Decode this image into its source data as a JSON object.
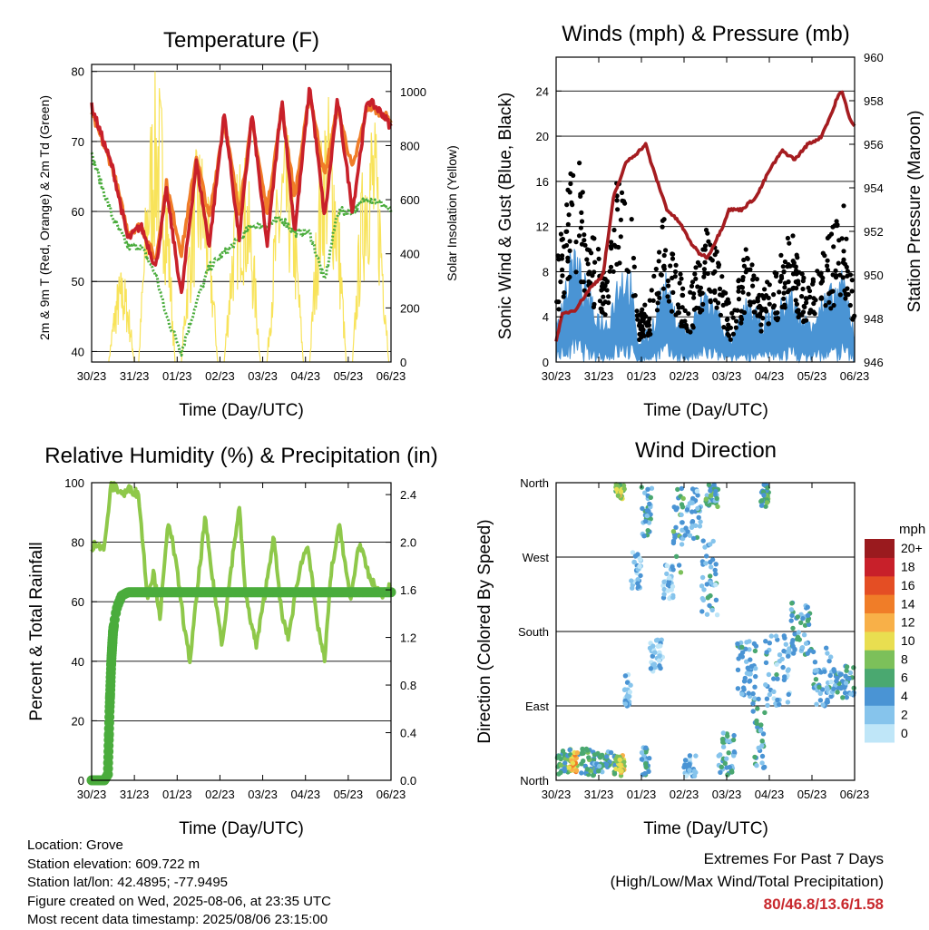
{
  "colors": {
    "temp_2m": "#c8202a",
    "temp_9m": "#f07d28",
    "dewpoint": "#4aac3c",
    "solar": "#f8e35a",
    "gust": "#000000",
    "wind": "#4a94d4",
    "pressure": "#a51c20",
    "rh": "#8ec84a",
    "precip": "#4aac3c"
  },
  "x_ticks": [
    "30/23",
    "31/23",
    "01/23",
    "02/23",
    "03/23",
    "04/23",
    "05/23",
    "06/23"
  ],
  "panels": {
    "temperature": {
      "title": "Temperature (F)",
      "xlabel": "Time (Day/UTC)",
      "ylabel_left": "2m & 9m T (Red, Orange) & 2m Td (Green)",
      "ylabel_right": "Solar Insolation (Yellow)",
      "yticks_left": [
        "40",
        "50",
        "60",
        "70",
        "80"
      ],
      "yticks_right": [
        "0",
        "200",
        "400",
        "600",
        "800",
        "1000"
      ]
    },
    "winds": {
      "title": "Winds (mph) & Pressure (mb)",
      "xlabel": "Time (Day/UTC)",
      "ylabel_left": "Sonic Wind & Gust (Blue, Black)",
      "ylabel_right": "Station Pressure (Maroon)",
      "yticks_left": [
        "0",
        "4",
        "8",
        "12",
        "16",
        "20",
        "24"
      ],
      "yticks_right": [
        "946",
        "948",
        "950",
        "952",
        "954",
        "956",
        "958",
        "960"
      ]
    },
    "humidity": {
      "title": "Relative Humidity (%) & Precipitation (in)",
      "xlabel": "Time (Day/UTC)",
      "ylabel_left": "Percent & Total Rainfall",
      "yticks_left": [
        "0",
        "20",
        "40",
        "60",
        "80",
        "100"
      ],
      "yticks_right": [
        "0.0",
        "0.4",
        "0.8",
        "1.2",
        "1.6",
        "2.0",
        "2.4"
      ]
    },
    "direction": {
      "title": "Wind Direction",
      "xlabel": "Time (Day/UTC)",
      "ylabel_left": "Direction (Colored By Speed)",
      "yticks_left": [
        "North",
        "East",
        "South",
        "West",
        "North"
      ],
      "colorbar_title": "mph",
      "colorbar_labels": [
        "0",
        "2",
        "4",
        "6",
        "8",
        "10",
        "12",
        "14",
        "16",
        "18",
        "20+"
      ],
      "colorbar_colors": [
        "#bfe6f8",
        "#86c4ec",
        "#4a94d4",
        "#4aa870",
        "#7cc05a",
        "#e9de50",
        "#f8b048",
        "#f07d28",
        "#e44e24",
        "#c8202a",
        "#9a1a1e"
      ]
    }
  },
  "info": {
    "location": "Location: Grove",
    "elevation": "Station elevation: 609.722 m",
    "latlon": "Station lat/lon: 42.4895; -77.9495",
    "created": "Figure created on Wed, 2025-08-06, at 23:35 UTC",
    "recent": "Most recent data timestamp: 2025/08/06 23:15:00"
  },
  "extremes": {
    "heading": "Extremes For Past 7 Days",
    "subheading": "(High/Low/Max Wind/Total Precipitation)",
    "values": "80/46.8/13.6/1.58"
  },
  "chart_data": [
    {
      "type": "line",
      "x_days": [
        0,
        0.5,
        0.85,
        1.15,
        1.5,
        1.75,
        2.1,
        2.45,
        2.75,
        3.1,
        3.45,
        3.75,
        4.1,
        4.45,
        4.75,
        5.1,
        5.45,
        5.75,
        6.1,
        6.45,
        6.8,
        7.0
      ],
      "ylim": [
        38.5,
        81
      ],
      "y2lim": [
        0,
        1100
      ],
      "series": [
        {
          "key": "temp_2m",
          "values": [
            75,
            66,
            56,
            58,
            52,
            63,
            48,
            67,
            55,
            74,
            56,
            74,
            55,
            76,
            57,
            78,
            59,
            76,
            60,
            76,
            74,
            72
          ]
        },
        {
          "key": "temp_9m",
          "values": [
            74,
            66,
            57,
            58,
            53,
            64,
            54,
            68,
            59,
            73,
            60,
            73,
            60,
            75,
            62,
            77,
            65,
            75,
            66,
            75,
            74,
            73
          ]
        },
        {
          "key": "dewpoint",
          "values": [
            68,
            59,
            55,
            55,
            51,
            45,
            40,
            47,
            52,
            54,
            56,
            58,
            58,
            59,
            57,
            57,
            50,
            60,
            60,
            62,
            61,
            60
          ]
        }
      ],
      "solar": {
        "days": [
          {
            "start": 0.4,
            "end": 1.0,
            "peak": 350
          },
          {
            "start": 1.1,
            "end": 1.95,
            "peak": 1090
          },
          {
            "start": 2.1,
            "end": 2.95,
            "peak": 830
          },
          {
            "start": 3.1,
            "end": 3.95,
            "peak": 800
          },
          {
            "start": 4.1,
            "end": 4.95,
            "peak": 880
          },
          {
            "start": 5.1,
            "end": 5.95,
            "peak": 1010
          },
          {
            "start": 6.1,
            "end": 6.95,
            "peak": 970
          }
        ]
      }
    },
    {
      "type": "scatter",
      "ylim": [
        0,
        27
      ],
      "y2lim": [
        946,
        960
      ],
      "pressure": {
        "x_days": [
          0,
          0.15,
          0.45,
          0.8,
          1.1,
          1.35,
          1.65,
          1.9,
          2.1,
          2.25,
          2.6,
          2.9,
          3.15,
          3.35,
          3.55,
          3.7,
          3.9,
          4.05,
          4.35,
          4.7,
          5.0,
          5.3,
          5.6,
          5.9,
          6.2,
          6.5,
          6.6,
          6.7,
          6.8,
          6.9,
          7.0
        ],
        "values": [
          947.0,
          948.2,
          948.4,
          949.4,
          950.0,
          953.6,
          955.2,
          955.6,
          956.0,
          955.0,
          953.0,
          952.4,
          951.5,
          951.0,
          950.8,
          951.4,
          952.2,
          953.0,
          953.0,
          953.6,
          954.8,
          955.7,
          955.3,
          956.0,
          956.3,
          957.6,
          958.2,
          958.4,
          957.8,
          957.1,
          956.8
        ]
      },
      "gust_envelope": {
        "x_days": [
          0,
          0.25,
          0.4,
          0.55,
          0.9,
          1.2,
          1.5,
          1.75,
          1.9,
          2.2,
          2.55,
          2.75,
          3.1,
          3.5,
          3.8,
          4.1,
          4.5,
          4.8,
          5.2,
          5.5,
          5.8,
          6.1,
          6.5,
          6.75,
          7.0
        ],
        "values": [
          8,
          14,
          18,
          16,
          10,
          7,
          18,
          14,
          4,
          5,
          13,
          9,
          5,
          11,
          9,
          4,
          10,
          6,
          8,
          11,
          7,
          8,
          11,
          13,
          6
        ]
      },
      "wind_envelope": {
        "x_days": [
          0,
          0.25,
          0.4,
          0.55,
          0.9,
          1.2,
          1.5,
          1.75,
          1.9,
          2.2,
          2.55,
          2.75,
          3.1,
          3.5,
          3.8,
          4.1,
          4.5,
          4.8,
          5.2,
          5.5,
          5.8,
          6.1,
          6.5,
          6.75,
          7.0
        ],
        "values": [
          4,
          8,
          11,
          9,
          5,
          4,
          9,
          8,
          2,
          3,
          8,
          5,
          3,
          7,
          5,
          2,
          6,
          4,
          5,
          7,
          4,
          5,
          7,
          8,
          3
        ]
      }
    },
    {
      "type": "line",
      "ylim": [
        0,
        100
      ],
      "y2lim": [
        0,
        2.5
      ],
      "rh": {
        "x_days": [
          0,
          0.1,
          0.3,
          0.45,
          0.6,
          0.75,
          0.9,
          1.1,
          1.3,
          1.45,
          1.6,
          1.8,
          2.0,
          2.2,
          2.3,
          2.5,
          2.65,
          2.85,
          3.05,
          3.25,
          3.45,
          3.6,
          3.85,
          4.1,
          4.25,
          4.45,
          4.6,
          4.85,
          5.05,
          5.25,
          5.45,
          5.6,
          5.8,
          6.05,
          6.25,
          6.5,
          6.75,
          7.0
        ],
        "values": [
          77,
          80,
          78,
          99,
          98,
          96,
          98,
          96,
          62,
          70,
          55,
          88,
          70,
          48,
          40,
          68,
          88,
          65,
          46,
          70,
          92,
          62,
          45,
          67,
          82,
          55,
          48,
          70,
          80,
          55,
          40,
          70,
          86,
          60,
          80,
          68,
          62,
          65
        ]
      },
      "precip": {
        "x_days": [
          0,
          0.3,
          0.38,
          0.42,
          0.46,
          0.5,
          0.55,
          0.6,
          0.7,
          0.85,
          1.0,
          7.0
        ],
        "values": [
          0,
          0,
          0.05,
          0.6,
          1.0,
          1.25,
          1.38,
          1.46,
          1.55,
          1.58,
          1.58,
          1.58
        ]
      }
    },
    {
      "type": "scatter",
      "ylim": [
        0,
        360
      ],
      "clusters": [
        {
          "x_start": 0.0,
          "x_end": 0.9,
          "dir_low": 5,
          "dir_high": 40,
          "speed": 6
        },
        {
          "x_start": 0.3,
          "x_end": 0.5,
          "dir_low": 10,
          "dir_high": 35,
          "speed": 12
        },
        {
          "x_start": 0.9,
          "x_end": 1.4,
          "dir_low": 10,
          "dir_high": 35,
          "speed": 5
        },
        {
          "x_start": 1.35,
          "x_end": 1.6,
          "dir_low": 5,
          "dir_high": 30,
          "speed": 9
        },
        {
          "x_start": 1.4,
          "x_end": 1.6,
          "dir_low": 340,
          "dir_high": 358,
          "speed": 9
        },
        {
          "x_start": 1.6,
          "x_end": 1.75,
          "dir_low": 90,
          "dir_high": 130,
          "speed": 2
        },
        {
          "x_start": 1.75,
          "x_end": 2.0,
          "dir_low": 230,
          "dir_high": 280,
          "speed": 2
        },
        {
          "x_start": 2.0,
          "x_end": 2.25,
          "dir_low": 290,
          "dir_high": 355,
          "speed": 4
        },
        {
          "x_start": 2.0,
          "x_end": 2.2,
          "dir_low": 5,
          "dir_high": 40,
          "speed": 4
        },
        {
          "x_start": 2.2,
          "x_end": 2.5,
          "dir_low": 130,
          "dir_high": 170,
          "speed": 2
        },
        {
          "x_start": 2.5,
          "x_end": 2.75,
          "dir_low": 220,
          "dir_high": 260,
          "speed": 2
        },
        {
          "x_start": 2.75,
          "x_end": 3.0,
          "dir_low": 250,
          "dir_high": 355,
          "speed": 5
        },
        {
          "x_start": 3.0,
          "x_end": 3.4,
          "dir_low": 290,
          "dir_high": 355,
          "speed": 3
        },
        {
          "x_start": 3.0,
          "x_end": 3.3,
          "dir_low": 5,
          "dir_high": 30,
          "speed": 3
        },
        {
          "x_start": 3.4,
          "x_end": 3.8,
          "dir_low": 200,
          "dir_high": 290,
          "speed": 3
        },
        {
          "x_start": 3.5,
          "x_end": 3.8,
          "dir_low": 330,
          "dir_high": 358,
          "speed": 5
        },
        {
          "x_start": 3.8,
          "x_end": 4.2,
          "dir_low": 5,
          "dir_high": 60,
          "speed": 4
        },
        {
          "x_start": 4.2,
          "x_end": 4.7,
          "dir_low": 100,
          "dir_high": 170,
          "speed": 3
        },
        {
          "x_start": 4.6,
          "x_end": 4.9,
          "dir_low": 5,
          "dir_high": 100,
          "speed": 4
        },
        {
          "x_start": 4.8,
          "x_end": 5.0,
          "dir_low": 330,
          "dir_high": 358,
          "speed": 6
        },
        {
          "x_start": 4.9,
          "x_end": 5.5,
          "dir_low": 90,
          "dir_high": 180,
          "speed": 3
        },
        {
          "x_start": 5.5,
          "x_end": 6.0,
          "dir_low": 150,
          "dir_high": 215,
          "speed": 4
        },
        {
          "x_start": 6.0,
          "x_end": 6.5,
          "dir_low": 90,
          "dir_high": 160,
          "speed": 3
        },
        {
          "x_start": 6.5,
          "x_end": 7.0,
          "dir_low": 100,
          "dir_high": 140,
          "speed": 4
        }
      ]
    }
  ]
}
